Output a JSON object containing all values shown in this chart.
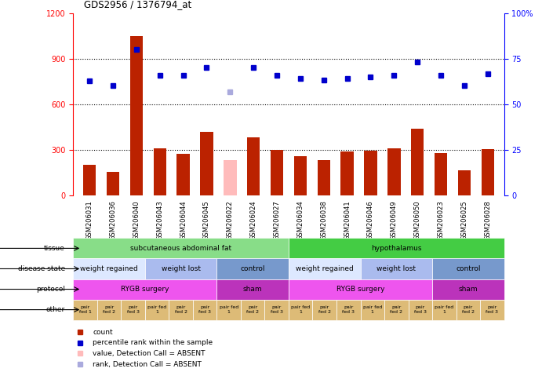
{
  "title": "GDS2956 / 1376794_at",
  "samples": [
    "GSM206031",
    "GSM206036",
    "GSM206040",
    "GSM206043",
    "GSM206044",
    "GSM206045",
    "GSM206022",
    "GSM206024",
    "GSM206027",
    "GSM206034",
    "GSM206038",
    "GSM206041",
    "GSM206046",
    "GSM206049",
    "GSM206050",
    "GSM206023",
    "GSM206025",
    "GSM206028"
  ],
  "bar_values": [
    200,
    155,
    1050,
    310,
    275,
    420,
    230,
    380,
    300,
    255,
    230,
    290,
    295,
    310,
    440,
    280,
    165,
    305
  ],
  "bar_absent": [
    false,
    false,
    false,
    false,
    false,
    false,
    true,
    false,
    false,
    false,
    false,
    false,
    false,
    false,
    false,
    false,
    false,
    false
  ],
  "dot_values": [
    755,
    720,
    960,
    790,
    790,
    840,
    680,
    840,
    790,
    770,
    760,
    770,
    780,
    790,
    880,
    790,
    720,
    800
  ],
  "dot_absent": [
    false,
    false,
    false,
    false,
    false,
    false,
    true,
    false,
    false,
    false,
    false,
    false,
    false,
    false,
    false,
    false,
    false,
    false
  ],
  "ylim_left": [
    0,
    1200
  ],
  "ylim_right": [
    0,
    100
  ],
  "yticks_left": [
    0,
    300,
    600,
    900,
    1200
  ],
  "yticks_right": [
    0,
    25,
    50,
    75,
    100
  ],
  "bar_color": "#bb2200",
  "bar_absent_color": "#ffbbbb",
  "dot_color": "#0000cc",
  "dot_absent_color": "#aaaadd",
  "tissue_labels": [
    {
      "text": "subcutaneous abdominal fat",
      "start": 0,
      "end": 8,
      "color": "#88dd88"
    },
    {
      "text": "hypothalamus",
      "start": 9,
      "end": 17,
      "color": "#44cc44"
    }
  ],
  "disease_labels": [
    {
      "text": "weight regained",
      "start": 0,
      "end": 2,
      "color": "#dde8ff"
    },
    {
      "text": "weight lost",
      "start": 3,
      "end": 5,
      "color": "#aabbee"
    },
    {
      "text": "control",
      "start": 6,
      "end": 8,
      "color": "#7799cc"
    },
    {
      "text": "weight regained",
      "start": 9,
      "end": 11,
      "color": "#dde8ff"
    },
    {
      "text": "weight lost",
      "start": 12,
      "end": 14,
      "color": "#aabbee"
    },
    {
      "text": "control",
      "start": 15,
      "end": 17,
      "color": "#7799cc"
    }
  ],
  "protocol_labels": [
    {
      "text": "RYGB surgery",
      "start": 0,
      "end": 5,
      "color": "#ee55ee"
    },
    {
      "text": "sham",
      "start": 6,
      "end": 8,
      "color": "#bb33bb"
    },
    {
      "text": "RYGB surgery",
      "start": 9,
      "end": 14,
      "color": "#ee55ee"
    },
    {
      "text": "sham",
      "start": 15,
      "end": 17,
      "color": "#bb33bb"
    }
  ],
  "other_labels": [
    {
      "text": "pair\nfed 1",
      "idx": 0
    },
    {
      "text": "pair\nfed 2",
      "idx": 1
    },
    {
      "text": "pair\nfed 3",
      "idx": 2
    },
    {
      "text": "pair fed\n1",
      "idx": 3
    },
    {
      "text": "pair\nfed 2",
      "idx": 4
    },
    {
      "text": "pair\nfed 3",
      "idx": 5
    },
    {
      "text": "pair fed\n1",
      "idx": 6
    },
    {
      "text": "pair\nfed 2",
      "idx": 7
    },
    {
      "text": "pair\nfed 3",
      "idx": 8
    },
    {
      "text": "pair fed\n1",
      "idx": 9
    },
    {
      "text": "pair\nfed 2",
      "idx": 10
    },
    {
      "text": "pair\nfed 3",
      "idx": 11
    },
    {
      "text": "pair fed\n1",
      "idx": 12
    },
    {
      "text": "pair\nfed 2",
      "idx": 13
    },
    {
      "text": "pair\nfed 3",
      "idx": 14
    },
    {
      "text": "pair fed\n1",
      "idx": 15
    },
    {
      "text": "pair\nfed 2",
      "idx": 16
    },
    {
      "text": "pair\nfed 3",
      "idx": 17
    }
  ],
  "other_color": "#ddbb77",
  "legend_items": [
    {
      "color": "#bb2200",
      "label": "count",
      "marker": "s"
    },
    {
      "color": "#0000cc",
      "label": "percentile rank within the sample",
      "marker": "s"
    },
    {
      "color": "#ffbbbb",
      "label": "value, Detection Call = ABSENT",
      "marker": "s"
    },
    {
      "color": "#aaaadd",
      "label": "rank, Detection Call = ABSENT",
      "marker": "s"
    }
  ],
  "background_color": "#ffffff"
}
